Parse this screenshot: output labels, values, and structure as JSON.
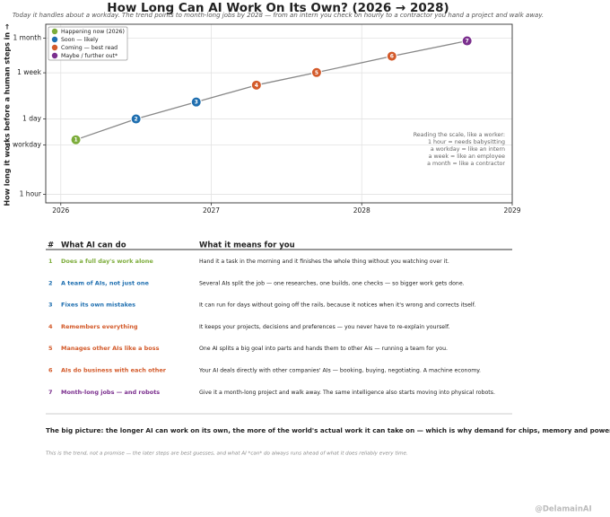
{
  "chart_data": {
    "type": "scatter",
    "title": "How Long Can AI Work On Its Own?   (2026 → 2028)",
    "subtitle": "Today it handles about a workday. The trend points to month-long jobs by 2028 — from an intern you check on hourly to a contractor you hand a project and walk away.",
    "y_label": "How long it works before a human steps in →",
    "log_y": true,
    "grid": true,
    "legend": "upper left",
    "line_color": "#888888",
    "xlim": [
      2025.9,
      2029
    ],
    "xticks": [
      2026,
      2027,
      2028,
      2029
    ],
    "ylim": [
      0.7,
      1300
    ],
    "yticks": [
      {
        "value": 1,
        "label": "1 hour"
      },
      {
        "value": 8,
        "label": "a workday"
      },
      {
        "value": 24,
        "label": "1 day"
      },
      {
        "value": 168,
        "label": "1 week"
      },
      {
        "value": 720,
        "label": "1 month"
      }
    ],
    "series": [
      {
        "name": "Happening now (2026)",
        "color": "#7cac3a",
        "x": [
          2026.1
        ],
        "values": [
          10
        ],
        "labels": [
          1
        ]
      },
      {
        "name": "Soon — likely",
        "color": "#1f6fb0",
        "x": [
          2026.5,
          2026.9
        ],
        "values": [
          24,
          49
        ],
        "labels": [
          2,
          3
        ]
      },
      {
        "name": "Coming — best read",
        "color": "#d35a2a",
        "x": [
          2027.3,
          2027.7,
          2028.2
        ],
        "values": [
          100,
          170,
          338
        ],
        "labels": [
          4,
          5,
          6
        ]
      },
      {
        "name": "Maybe / further out*",
        "color": "#7b2f8e",
        "x": [
          2028.7
        ],
        "values": [
          645
        ],
        "labels": [
          7
        ]
      }
    ],
    "annotation": [
      "Reading the scale, like a worker:",
      "1 hour   =   needs babysitting",
      "a workday   =   like an intern",
      "a week   =   like an employee",
      "a month   =   like a contractor"
    ]
  },
  "table": {
    "headers": [
      "#",
      "What AI can do",
      "What it means for you"
    ],
    "rows": [
      {
        "number": 1,
        "color": "#7cac3a",
        "title": "Does a full day's work alone",
        "text": "Hand it a task in the morning and it finishes the whole thing without you watching over it."
      },
      {
        "number": 2,
        "color": "#1f6fb0",
        "title": "A team of AIs, not just one",
        "text": "Several AIs split the job — one researches, one builds, one checks — so bigger work gets done."
      },
      {
        "number": 3,
        "color": "#1f6fb0",
        "title": "Fixes its own mistakes",
        "text": "It can run for days without going off the rails, because it notices when it's wrong and corrects itself."
      },
      {
        "number": 4,
        "color": "#d35a2a",
        "title": "Remembers everything",
        "text": "It keeps your projects, decisions and preferences — you never have to re-explain yourself."
      },
      {
        "number": 5,
        "color": "#d35a2a",
        "title": "Manages other AIs like a boss",
        "text": "One AI splits a big goal into parts and hands them to other AIs — running a team for you."
      },
      {
        "number": 6,
        "color": "#d35a2a",
        "title": "AIs do business with each other",
        "text": "Your AI deals directly with other companies' AIs — booking, buying, negotiating. A machine economy."
      },
      {
        "number": 7,
        "color": "#7b2f8e",
        "title": "Month-long jobs — and robots",
        "text": "Give it a month-long project and walk away. The same intelligence also starts moving into physical robots."
      }
    ]
  },
  "footer": {
    "big_picture": "The big picture:  the longer AI can work on its own, the more of the world's actual work it can take on — which is why demand for chips, memory and power keeps climbing.",
    "note": "This is the trend, not a promise — the later steps are best guesses, and what AI *can* do always runs ahead of what it does reliably every time.",
    "watermark": "@DelamainAI"
  }
}
